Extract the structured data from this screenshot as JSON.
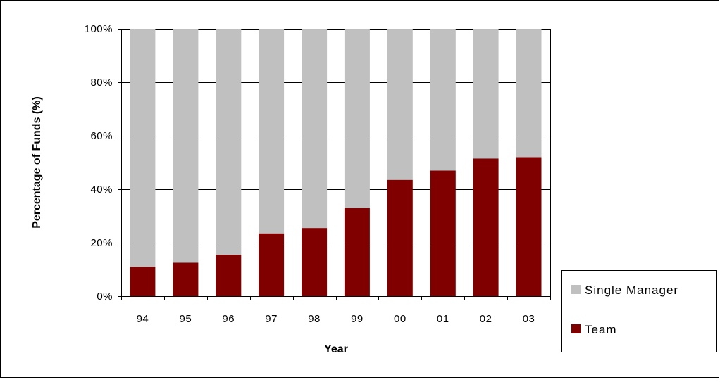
{
  "chart_data": {
    "type": "bar",
    "stacked": true,
    "title": "",
    "xlabel": "Year",
    "ylabel": "Percentage of Funds (%)",
    "categories": [
      "94",
      "95",
      "96",
      "97",
      "98",
      "99",
      "00",
      "01",
      "02",
      "03"
    ],
    "series": [
      {
        "name": "Team",
        "color": "#800000",
        "values": [
          11,
          12.5,
          15.5,
          23.5,
          25.5,
          33,
          43.5,
          47,
          51.5,
          52
        ]
      },
      {
        "name": "Single Manager",
        "color": "#c0c0c0",
        "values": [
          89,
          87.5,
          84.5,
          76.5,
          74.5,
          67,
          56.5,
          53,
          48.5,
          48
        ]
      }
    ],
    "ylim": [
      0,
      100
    ],
    "yticks": [
      "0%",
      "20%",
      "40%",
      "60%",
      "80%",
      "100%"
    ],
    "grid": true,
    "legend": {
      "placement": "right",
      "entries": [
        "Single Manager",
        "Team"
      ]
    }
  }
}
